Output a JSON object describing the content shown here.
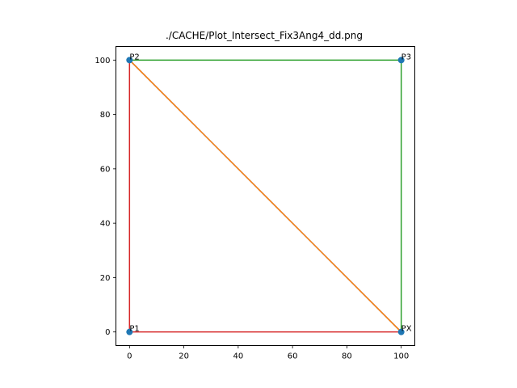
{
  "chart_data": {
    "type": "scatter",
    "title": "./CACHE/Plot_Intersect_Fix3Ang4_dd.png",
    "xlabel": "",
    "ylabel": "",
    "xlim": [
      -5,
      105
    ],
    "ylim": [
      -5,
      105
    ],
    "x_ticks": [
      0,
      20,
      40,
      60,
      80,
      100
    ],
    "y_ticks": [
      0,
      20,
      40,
      60,
      80,
      100
    ],
    "grid": false,
    "aspect": "equal",
    "points": [
      {
        "label": "P1",
        "x": 0,
        "y": 0
      },
      {
        "label": "P2",
        "x": 0,
        "y": 100
      },
      {
        "label": "P3",
        "x": 100,
        "y": 100
      },
      {
        "label": "PX",
        "x": 100,
        "y": 0
      }
    ],
    "point_color": "#1f77b4",
    "segments": [
      {
        "x": [
          0,
          100
        ],
        "y": [
          100,
          0
        ],
        "color": "#1f77b4"
      },
      {
        "x": [
          0,
          100,
          100
        ],
        "y": [
          100,
          100,
          0
        ],
        "color": "#2ca02c"
      },
      {
        "x": [
          0,
          0,
          100
        ],
        "y": [
          100,
          0,
          0
        ],
        "color": "#d62728"
      },
      {
        "x": [
          0,
          100
        ],
        "y": [
          100,
          0
        ],
        "color": "#ff7f0e"
      }
    ]
  }
}
